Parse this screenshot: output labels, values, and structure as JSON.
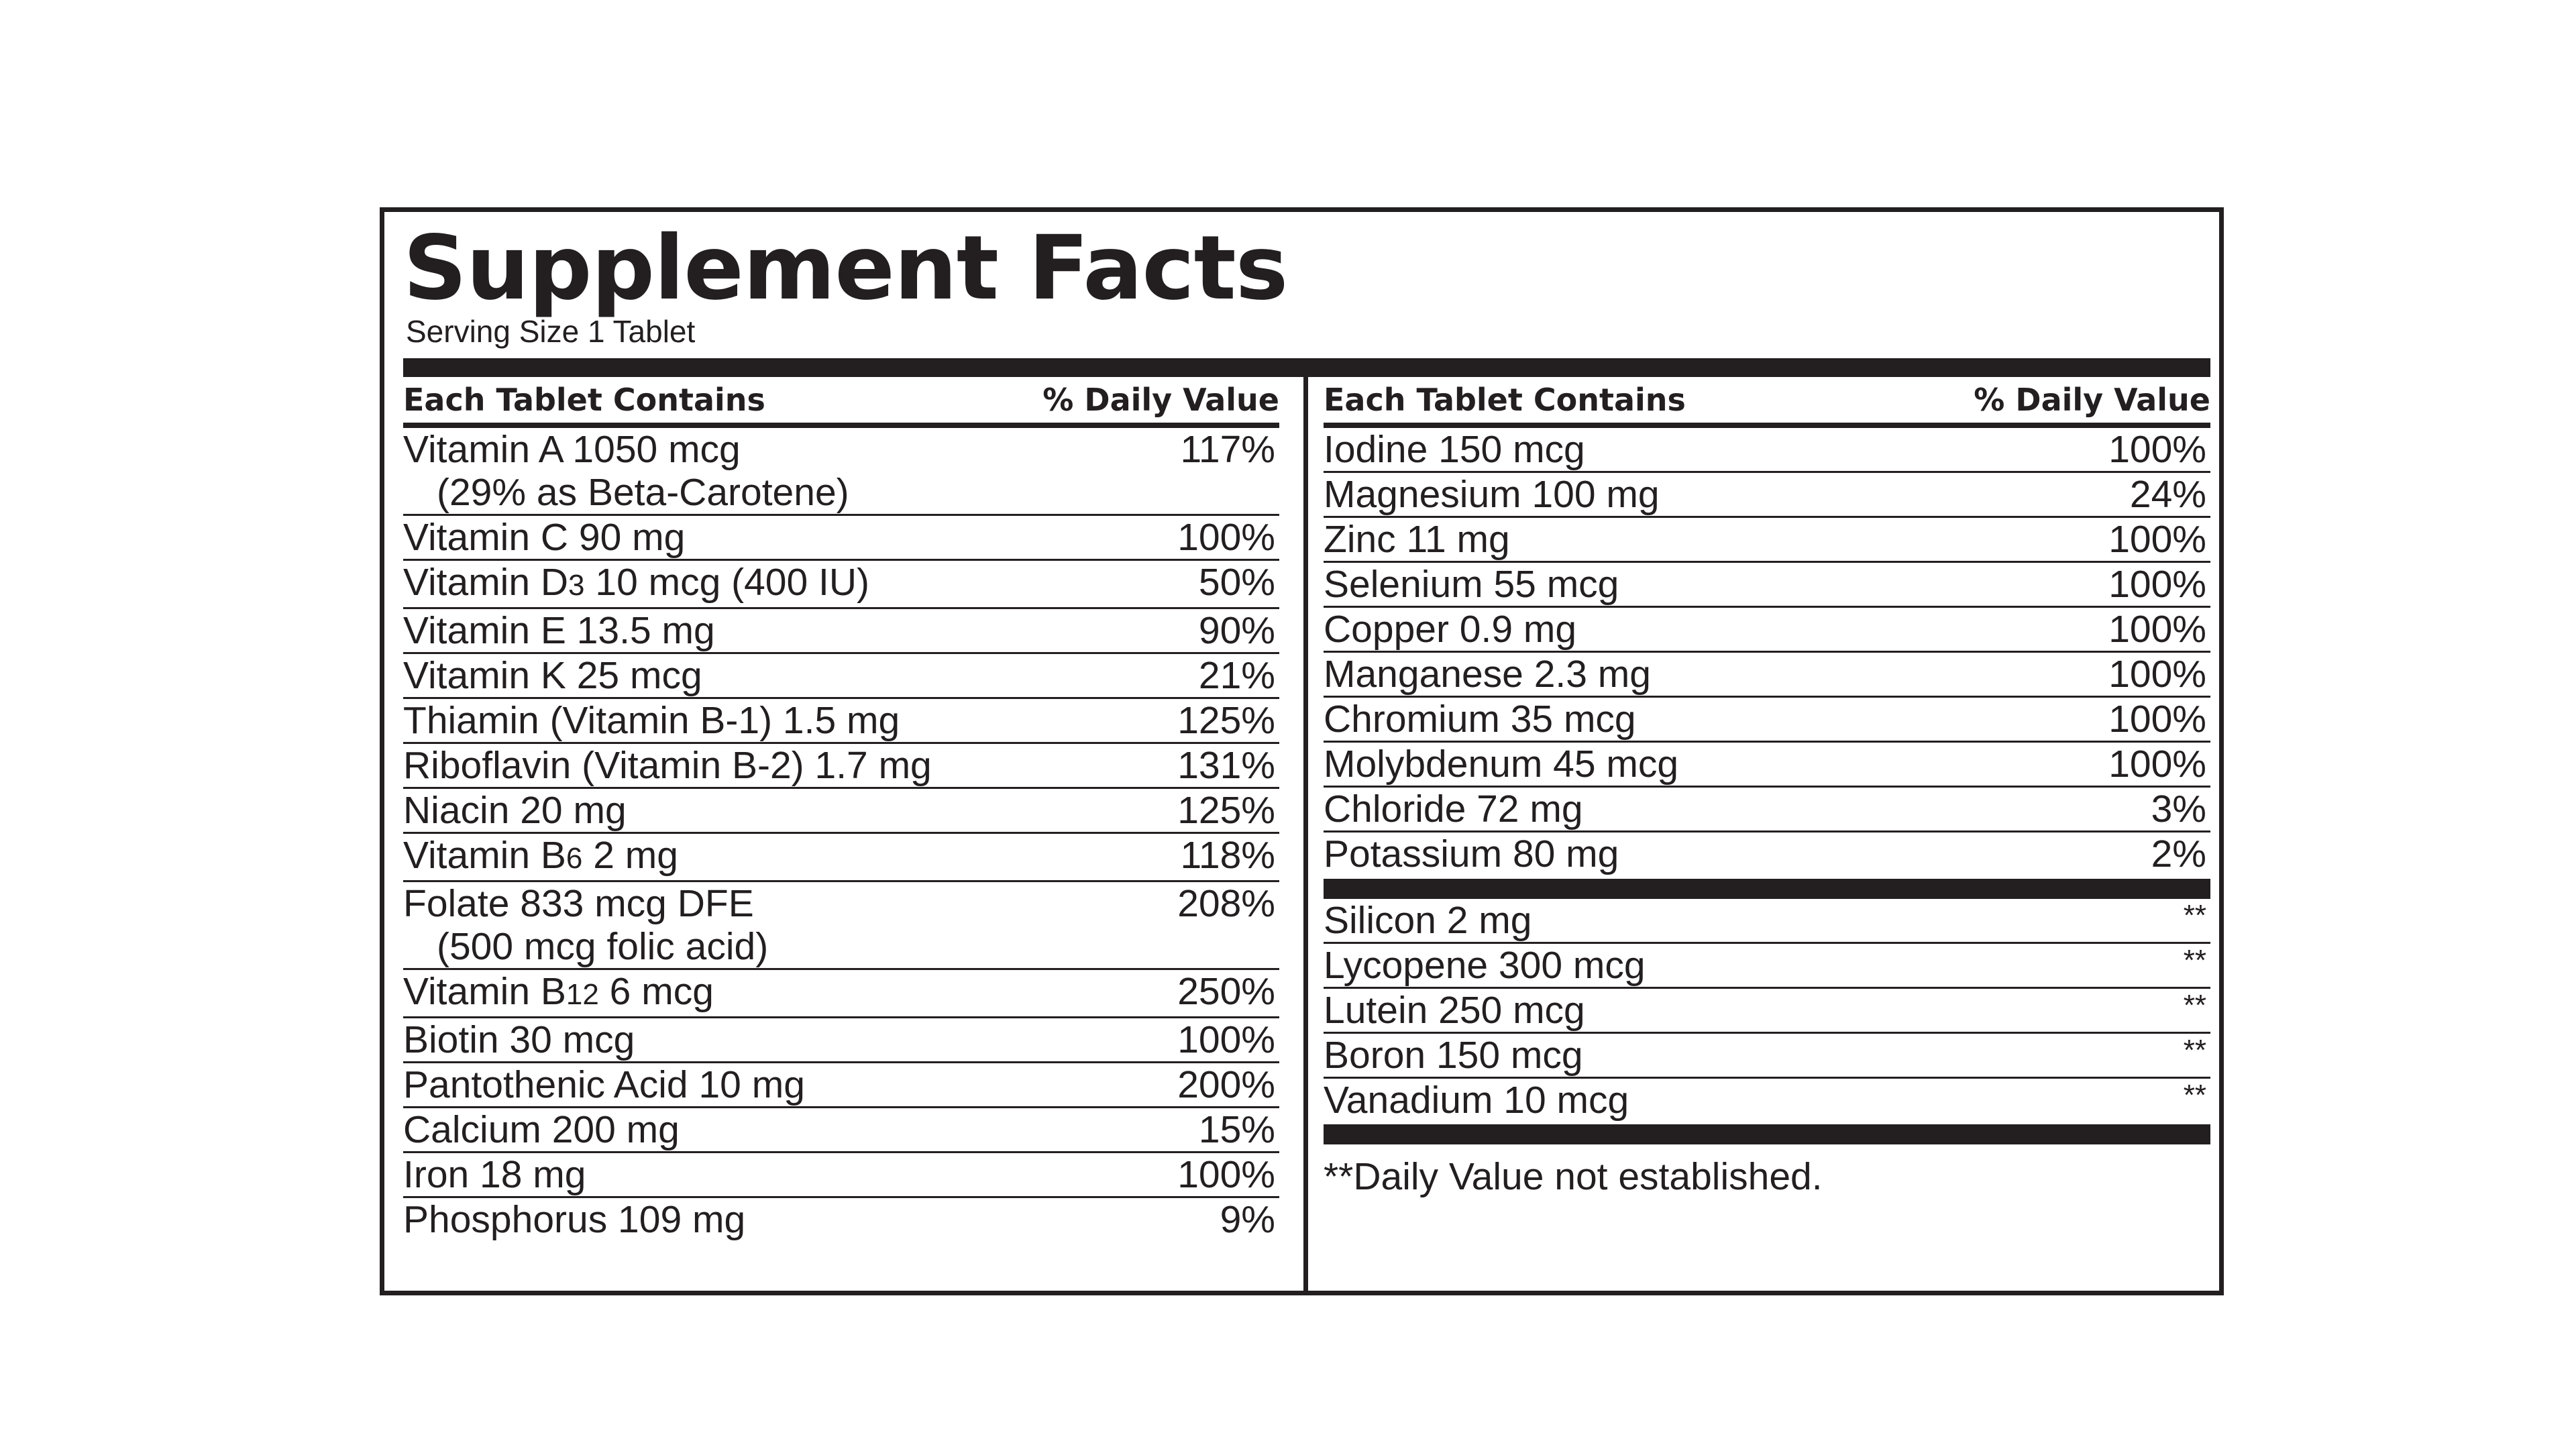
{
  "title": "Supplement Facts",
  "serving_size": "Serving Size 1 Tablet",
  "headers": {
    "left_name": "Each Tablet Contains",
    "left_dv": "% Daily Value",
    "right_name": "Each Tablet Contains",
    "right_dv": "% Daily Value"
  },
  "left_rows": [
    {
      "name": "Vitamin A 1050 mcg",
      "sub": "(29% as Beta-Carotene)",
      "dv": "117%"
    },
    {
      "name": "Vitamin C 90 mg",
      "dv": "100%"
    },
    {
      "name_a": "Vitamin D",
      "name_sub": "3",
      "name_b": " 10 mcg (400 IU)",
      "dv": "50%"
    },
    {
      "name": "Vitamin E 13.5 mg",
      "dv": "90%"
    },
    {
      "name": "Vitamin K 25 mcg",
      "dv": "21%"
    },
    {
      "name": "Thiamin (Vitamin B-1) 1.5 mg",
      "dv": "125%"
    },
    {
      "name": "Riboflavin (Vitamin B-2) 1.7 mg",
      "dv": "131%"
    },
    {
      "name": "Niacin 20 mg",
      "dv": "125%"
    },
    {
      "name_a": "Vitamin B",
      "name_sub": "6",
      "name_b": " 2 mg",
      "dv": "118%"
    },
    {
      "name": "Folate 833 mcg DFE",
      "sub": "(500 mcg folic acid)",
      "dv": "208%"
    },
    {
      "name_a": "Vitamin B",
      "name_sub": "12",
      "name_b": " 6 mcg",
      "dv": "250%"
    },
    {
      "name": "Biotin 30 mcg",
      "dv": "100%"
    },
    {
      "name": "Pantothenic Acid 10 mg",
      "dv": "200%"
    },
    {
      "name": "Calcium 200 mg",
      "dv": "15%"
    },
    {
      "name": "Iron 18 mg",
      "dv": "100%"
    },
    {
      "name": "Phosphorus 109 mg",
      "dv": "9%"
    }
  ],
  "right_rows": [
    {
      "name": "Iodine 150 mcg",
      "dv": "100%"
    },
    {
      "name": "Magnesium 100 mg",
      "dv": "24%"
    },
    {
      "name": "Zinc 11 mg",
      "dv": "100%"
    },
    {
      "name": "Selenium 55 mcg",
      "dv": "100%"
    },
    {
      "name": "Copper 0.9 mg",
      "dv": "100%"
    },
    {
      "name": "Manganese 2.3 mg",
      "dv": "100%"
    },
    {
      "name": "Chromium 35 mcg",
      "dv": "100%"
    },
    {
      "name": "Molybdenum 45 mcg",
      "dv": "100%"
    },
    {
      "name": "Chloride 72 mg",
      "dv": "3%"
    },
    {
      "name": "Potassium 80 mg",
      "dv": "2%"
    }
  ],
  "right_rows_2": [
    {
      "name": "Silicon 2 mg",
      "dv": "**"
    },
    {
      "name": "Lycopene 300 mcg",
      "dv": "**"
    },
    {
      "name": "Lutein 250 mcg",
      "dv": "**"
    },
    {
      "name": "Boron 150 mcg",
      "dv": "**"
    },
    {
      "name": "Vanadium 10 mcg",
      "dv": "**"
    }
  ],
  "footnote": "**Daily Value not established."
}
